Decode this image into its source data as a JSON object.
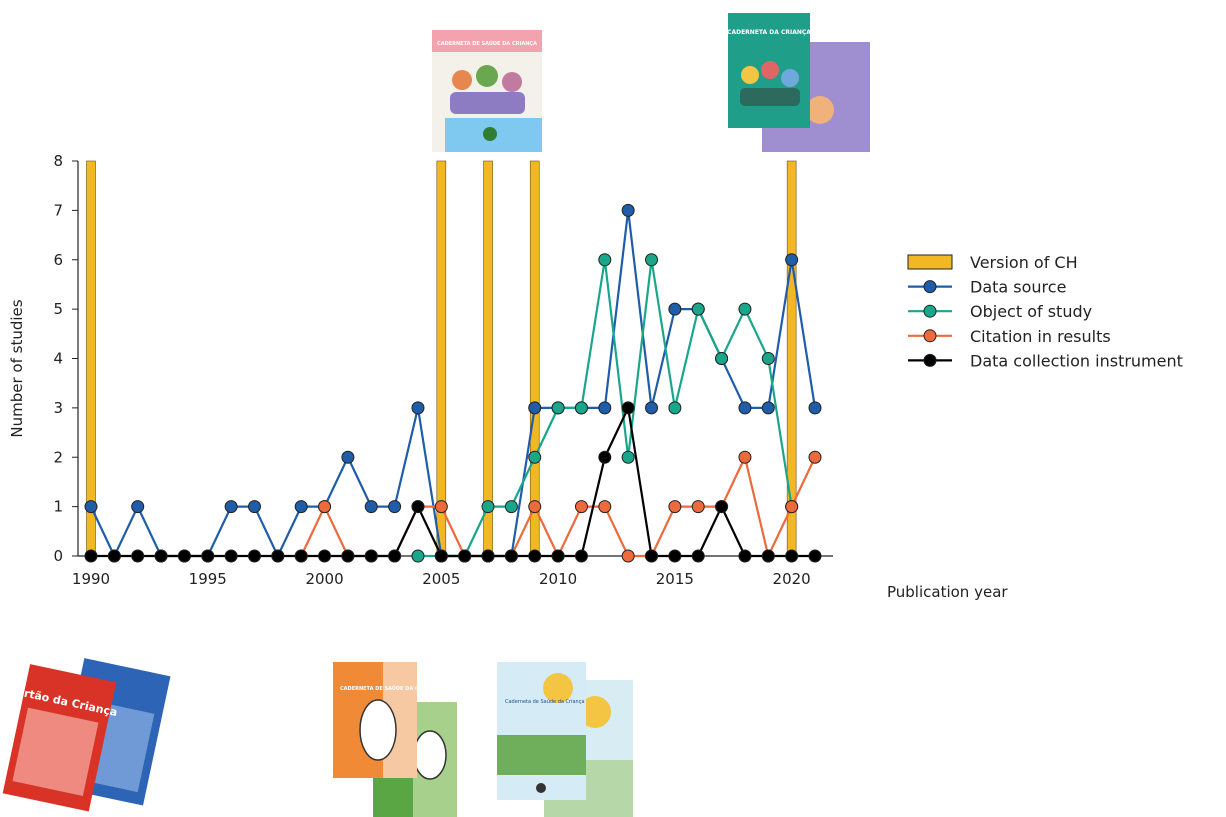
{
  "chart_data": {
    "type": "line",
    "xlabel": "Publication year",
    "ylabel": "Number of studies",
    "xlim": [
      1990,
      2021
    ],
    "ylim": [
      0,
      8
    ],
    "x_ticks": [
      1990,
      1995,
      2000,
      2005,
      2010,
      2015,
      2020
    ],
    "y_ticks": [
      0,
      1,
      2,
      3,
      4,
      5,
      6,
      7,
      8
    ],
    "grid": false,
    "legend_position": "right",
    "x": [
      1990,
      1991,
      1992,
      1993,
      1994,
      1995,
      1996,
      1997,
      1998,
      1999,
      2000,
      2001,
      2002,
      2003,
      2004,
      2005,
      2006,
      2007,
      2008,
      2009,
      2010,
      2011,
      2012,
      2013,
      2014,
      2015,
      2016,
      2017,
      2018,
      2019,
      2020,
      2021
    ],
    "bars": {
      "name": "Version of CH",
      "color": "#f2b824",
      "x": [
        1990,
        2005,
        2007,
        2009,
        2020
      ],
      "values": [
        8,
        8,
        8,
        8,
        8
      ]
    },
    "series": [
      {
        "name": "Data source",
        "color": "#1f5da8",
        "values": [
          1,
          0,
          1,
          0,
          0,
          0,
          1,
          1,
          0,
          1,
          1,
          2,
          1,
          1,
          3,
          0,
          0,
          0,
          0,
          3,
          3,
          3,
          3,
          7,
          3,
          5,
          5,
          4,
          3,
          3,
          6,
          3
        ]
      },
      {
        "name": "Object of study",
        "color": "#19a68a",
        "values": [
          null,
          null,
          null,
          null,
          null,
          null,
          null,
          null,
          null,
          null,
          null,
          null,
          null,
          null,
          0,
          0,
          0,
          1,
          1,
          2,
          3,
          3,
          6,
          2,
          6,
          3,
          5,
          4,
          5,
          4,
          1,
          null
        ]
      },
      {
        "name": "Citation in results",
        "color": "#ec6a3c",
        "values": [
          null,
          null,
          null,
          null,
          null,
          null,
          null,
          null,
          null,
          0,
          1,
          0,
          0,
          0,
          1,
          1,
          0,
          0,
          0,
          1,
          0,
          1,
          1,
          0,
          0,
          1,
          1,
          1,
          2,
          0,
          1,
          2
        ]
      },
      {
        "name": "Data collection instrument",
        "color": "#000000",
        "values": [
          0,
          0,
          0,
          0,
          0,
          0,
          0,
          0,
          0,
          0,
          0,
          0,
          0,
          0,
          1,
          0,
          0,
          0,
          0,
          0,
          0,
          0,
          2,
          3,
          0,
          0,
          0,
          1,
          0,
          0,
          0,
          0
        ]
      }
    ]
  },
  "booklets": {
    "b2005_title": "CADERNETA DE SAÚDE DA CRIANÇA",
    "b2020_title": "CADERNETA DA CRIANÇA",
    "b1990_title": "Cartão da Criança",
    "b2007_title": "CADERNETA DE SAÚDE DA CRIANÇA",
    "b2009_title": "Caderneta de Saúde da Criança"
  }
}
